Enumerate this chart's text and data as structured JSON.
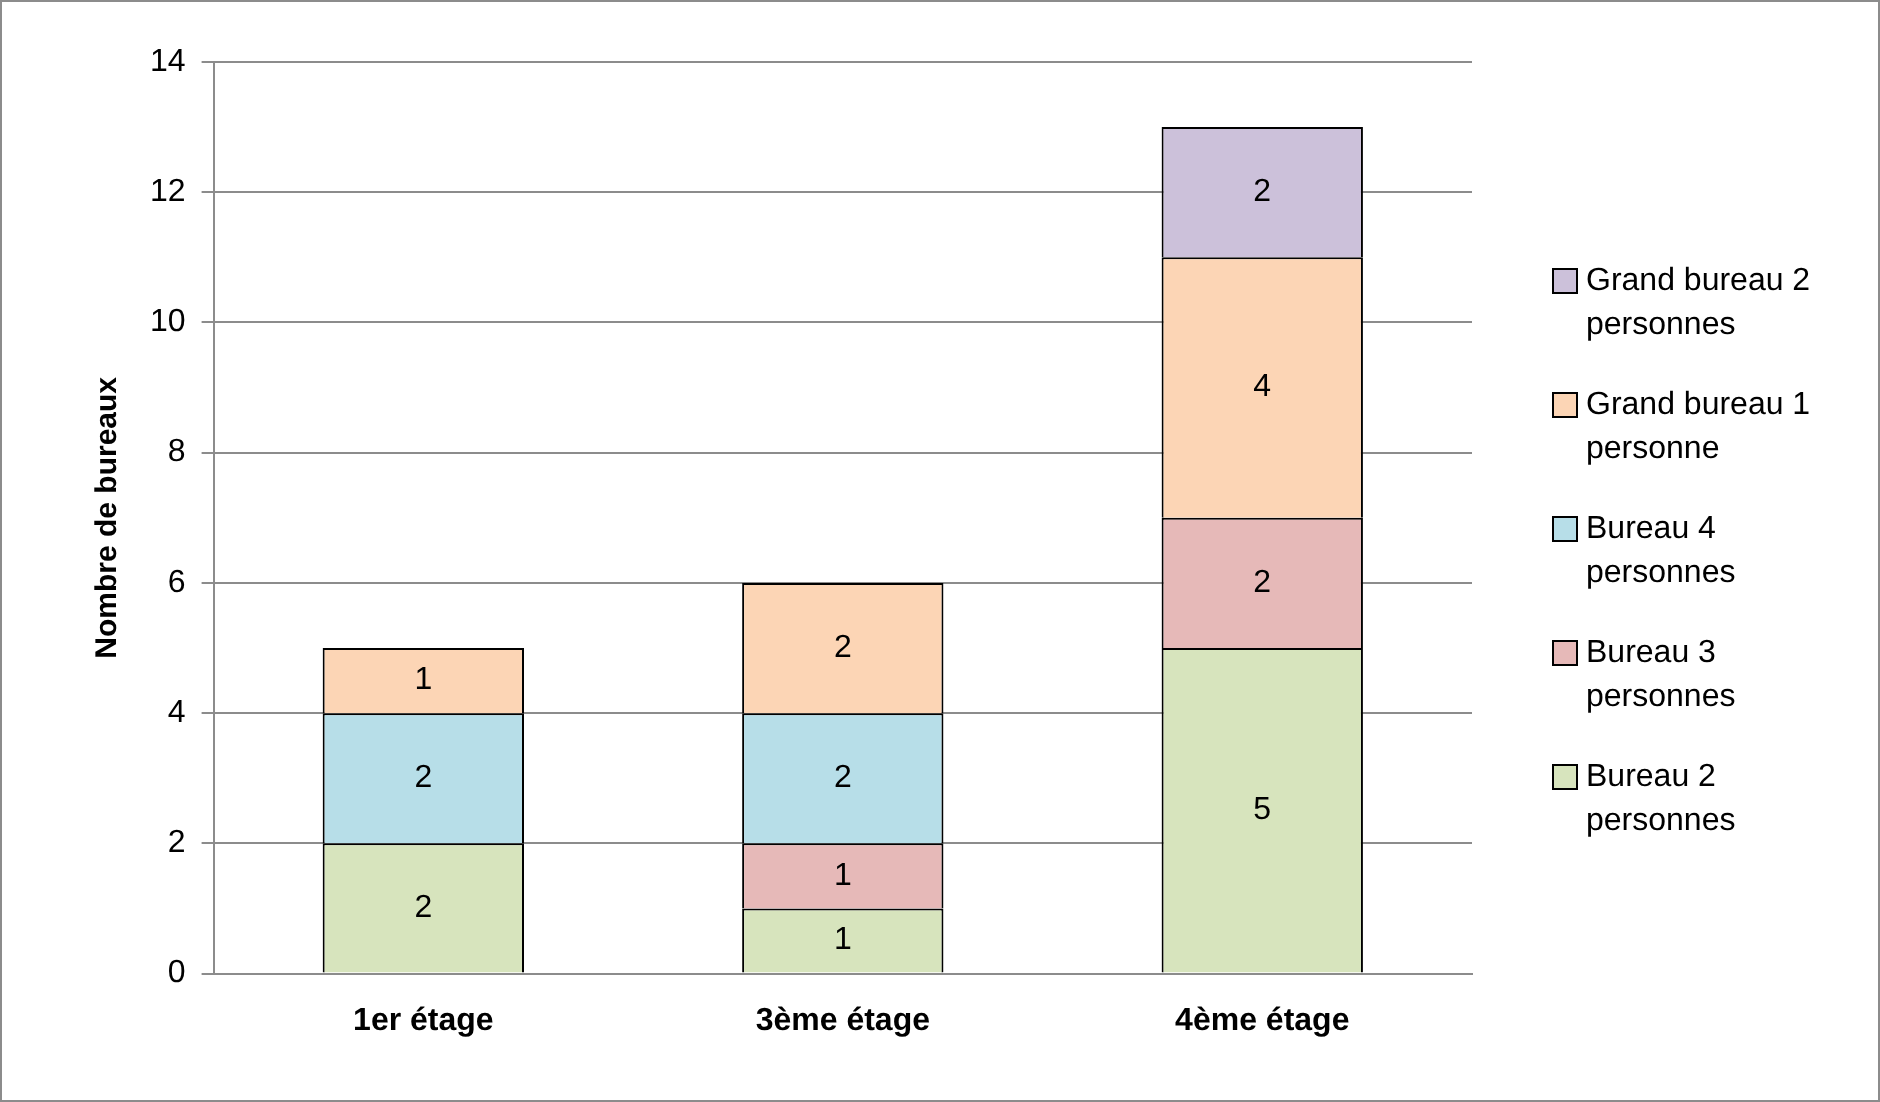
{
  "chart_data": {
    "type": "bar",
    "stacked": true,
    "ylabel": "Nombre de bureaux",
    "categories": [
      "1er étage",
      "3ème étage",
      "4ème étage"
    ],
    "series": [
      {
        "name": "Bureau 2 personnes",
        "color": "#d7e4bd",
        "values": [
          2,
          1,
          5
        ]
      },
      {
        "name": "Bureau 3 personnes",
        "color": "#e6b9b8",
        "values": [
          null,
          1,
          2
        ]
      },
      {
        "name": "Bureau 4 personnes",
        "color": "#b7dee8",
        "values": [
          2,
          2,
          null
        ]
      },
      {
        "name": "Grand bureau 1 personne",
        "color": "#fcd5b5",
        "values": [
          1,
          2,
          4
        ]
      },
      {
        "name": "Grand bureau 2 personnes",
        "color": "#ccc1da",
        "values": [
          null,
          null,
          2
        ]
      }
    ],
    "ylim": [
      0,
      14
    ],
    "yticks": [
      0,
      2,
      4,
      6,
      8,
      10,
      12,
      14
    ],
    "grid": "y",
    "legend": "right",
    "data_labels": true
  }
}
